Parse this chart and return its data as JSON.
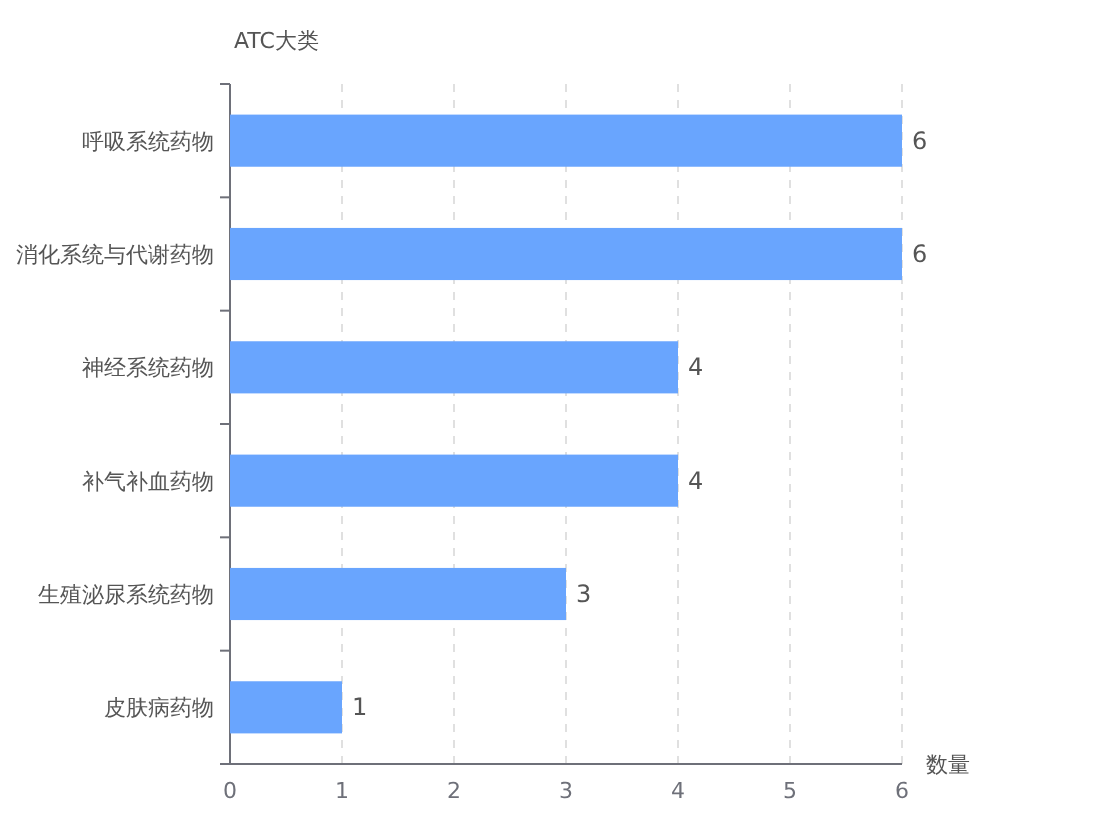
{
  "chart_data": {
    "type": "bar",
    "orientation": "horizontal",
    "ylabel": "ATC大类",
    "xlabel": "数量",
    "categories": [
      "呼吸系统药物",
      "消化系统与代谢药物",
      "神经系统药物",
      "补气补血药物",
      "生殖泌尿系统药物",
      "皮肤病药物"
    ],
    "values": [
      6,
      6,
      4,
      4,
      3,
      1
    ],
    "color": "#69a5fe",
    "data_labels": true,
    "xlim": [
      0,
      6
    ],
    "xticks": [
      0,
      1,
      2,
      3,
      4,
      5,
      6
    ],
    "grid": "x"
  }
}
